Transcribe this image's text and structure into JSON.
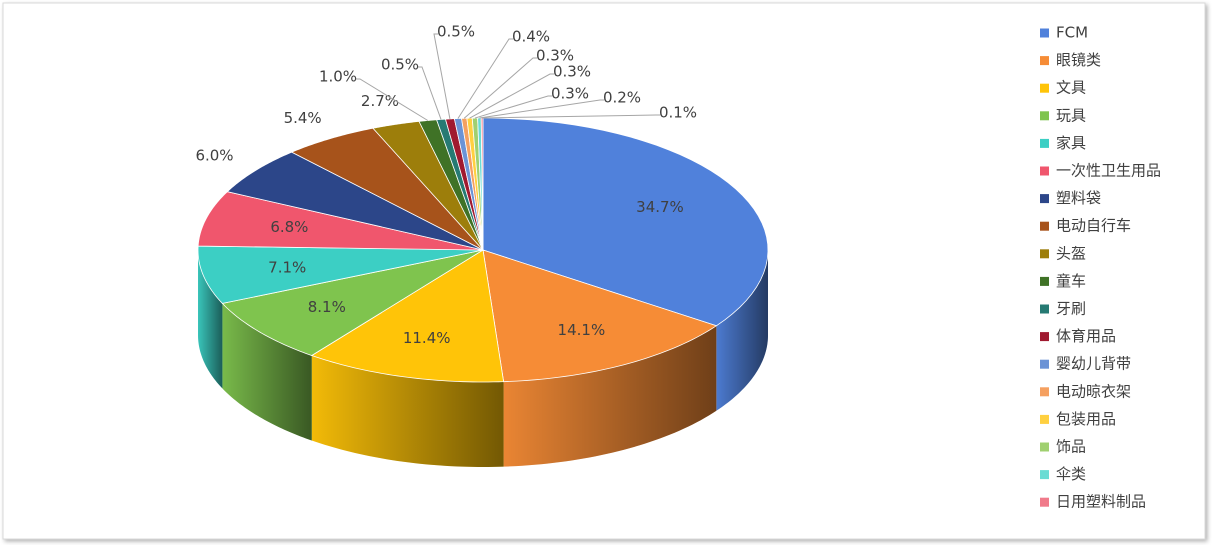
{
  "chart_data": {
    "type": "pie3d",
    "categories": [
      "FCM",
      "眼镜类",
      "文具",
      "玩具",
      "家具",
      "一次性卫生用品",
      "塑料袋",
      "电动自行车",
      "头盔",
      "童车",
      "牙刷",
      "体育用品",
      "婴幼儿背带",
      "电动晾衣架",
      "包装用品",
      "饰品",
      "伞类",
      "日用塑料制品"
    ],
    "values": [
      34.7,
      14.1,
      11.4,
      8.1,
      7.1,
      6.8,
      6.0,
      5.4,
      2.7,
      1.0,
      0.5,
      0.5,
      0.4,
      0.3,
      0.3,
      0.3,
      0.2,
      0.1
    ],
    "value_labels": [
      "34.7%",
      "14.1%",
      "11.4%",
      "8.1%",
      "7.1%",
      "6.8%",
      "6.0%",
      "5.4%",
      "2.7%",
      "1.0%",
      "0.5%",
      "0.5%",
      "0.4%",
      "0.3%",
      "0.3%",
      "0.3%",
      "0.2%",
      "0.1%"
    ],
    "colors": [
      "#5081db",
      "#f68c36",
      "#ffc408",
      "#7fc44e",
      "#3ccfc4",
      "#f0566d",
      "#2c4689",
      "#a7531b",
      "#9d7e0b",
      "#3f7226",
      "#267a73",
      "#a01a30",
      "#6b93d6",
      "#f5a060",
      "#ffd040",
      "#a0d070",
      "#6adcd4",
      "#f07a8a"
    ],
    "legend": "right"
  }
}
